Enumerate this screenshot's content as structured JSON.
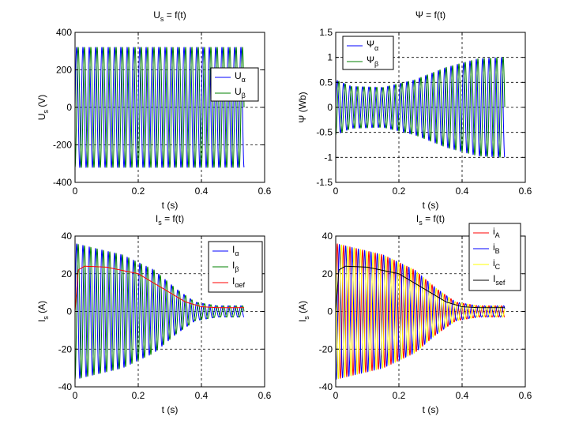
{
  "chart_data": [
    {
      "type": "line",
      "title": "U",
      "title_sub": "s",
      "title_rest": " = f(t)",
      "xlabel": "t (s)",
      "ylabel": "U",
      "ylabel_sub": "s",
      "ylabel_rest": " (V)",
      "xlim": [
        0,
        0.6
      ],
      "ylim": [
        -400,
        400
      ],
      "xticks": [
        0,
        0.2,
        0.4,
        0.6
      ],
      "xticklabels": [
        "0",
        "0.2",
        "0.4",
        "0.6"
      ],
      "yticks": [
        -400,
        -200,
        0,
        200,
        400
      ],
      "yticklabels": [
        "-400",
        "-200",
        "0",
        "200",
        "400"
      ],
      "grid": true,
      "legend_position": "upper-right",
      "series": [
        {
          "name": "U",
          "name_sub": "α",
          "color": "#0000ff",
          "kind": "osc",
          "t_end": 0.535,
          "freq": 50,
          "envelope": [
            [
              0,
              320
            ],
            [
              0.535,
              320
            ]
          ],
          "phase": 0
        },
        {
          "name": "U",
          "name_sub": "β",
          "color": "#008000",
          "kind": "osc",
          "t_end": 0.535,
          "freq": 50,
          "envelope": [
            [
              0,
              320
            ],
            [
              0.535,
              320
            ]
          ],
          "phase": -1.5708
        }
      ]
    },
    {
      "type": "line",
      "title": "Ψ = f(t)",
      "xlabel": "t (s)",
      "ylabel": "Ψ (Wb)",
      "xlim": [
        0,
        0.6
      ],
      "ylim": [
        -1.5,
        1.5
      ],
      "xticks": [
        0,
        0.2,
        0.4,
        0.6
      ],
      "xticklabels": [
        "0",
        "0.2",
        "0.4",
        "0.6"
      ],
      "yticks": [
        -1.5,
        -1,
        -0.5,
        0,
        0.5,
        1,
        1.5
      ],
      "yticklabels": [
        "-1.5",
        "-1",
        "-0.5",
        "0",
        "0.5",
        "1",
        "1.5"
      ],
      "grid": true,
      "legend_position": "upper-left",
      "series": [
        {
          "name": "Ψ",
          "name_sub": "α",
          "color": "#0000ff",
          "kind": "osc",
          "t_end": 0.535,
          "freq": 50,
          "envelope": [
            [
              0,
              0.55
            ],
            [
              0.05,
              0.42
            ],
            [
              0.15,
              0.4
            ],
            [
              0.25,
              0.55
            ],
            [
              0.35,
              0.8
            ],
            [
              0.45,
              0.97
            ],
            [
              0.535,
              1.0
            ]
          ],
          "phase": 0
        },
        {
          "name": "Ψ",
          "name_sub": "β",
          "color": "#008000",
          "kind": "osc",
          "t_end": 0.535,
          "freq": 50,
          "envelope": [
            [
              0,
              0.55
            ],
            [
              0.05,
              0.42
            ],
            [
              0.15,
              0.4
            ],
            [
              0.25,
              0.55
            ],
            [
              0.35,
              0.8
            ],
            [
              0.45,
              0.97
            ],
            [
              0.535,
              1.0
            ]
          ],
          "phase": -1.5708
        }
      ]
    },
    {
      "type": "line",
      "title": "I",
      "title_sub": "s",
      "title_rest": " = f(t)",
      "xlabel": "t (s)",
      "ylabel": "I",
      "ylabel_sub": "s",
      "ylabel_rest": " (A)",
      "xlim": [
        0,
        0.6
      ],
      "ylim": [
        -40,
        40
      ],
      "xticks": [
        0,
        0.2,
        0.4,
        0.6
      ],
      "xticklabels": [
        "0",
        "0.2",
        "0.4",
        "0.6"
      ],
      "yticks": [
        -40,
        -20,
        0,
        20,
        40
      ],
      "yticklabels": [
        "-40",
        "-20",
        "0",
        "20",
        "40"
      ],
      "grid": true,
      "legend_position": "upper-right",
      "series": [
        {
          "name": "I",
          "name_sub": "α",
          "color": "#0000ff",
          "kind": "osc",
          "t_end": 0.535,
          "freq": 50,
          "envelope": [
            [
              0,
              36
            ],
            [
              0.05,
              34
            ],
            [
              0.15,
              30
            ],
            [
              0.25,
              22
            ],
            [
              0.32,
              12
            ],
            [
              0.38,
              5
            ],
            [
              0.45,
              3
            ],
            [
              0.535,
              3
            ]
          ],
          "phase": 0
        },
        {
          "name": "I",
          "name_sub": "β",
          "color": "#008000",
          "kind": "osc",
          "t_end": 0.535,
          "freq": 50,
          "envelope": [
            [
              0,
              36
            ],
            [
              0.05,
              34
            ],
            [
              0.15,
              30
            ],
            [
              0.25,
              22
            ],
            [
              0.32,
              12
            ],
            [
              0.38,
              5
            ],
            [
              0.45,
              3
            ],
            [
              0.535,
              3
            ]
          ],
          "phase": -1.5708
        },
        {
          "name": "I",
          "name_sub": "αef",
          "color": "#ff0000",
          "kind": "env",
          "t_end": 0.535,
          "points": [
            [
              0,
              0
            ],
            [
              0.01,
              22
            ],
            [
              0.03,
              24
            ],
            [
              0.1,
              23.5
            ],
            [
              0.2,
              20
            ],
            [
              0.25,
              15
            ],
            [
              0.3,
              10
            ],
            [
              0.35,
              5
            ],
            [
              0.4,
              2.5
            ],
            [
              0.45,
              2
            ],
            [
              0.535,
              2
            ]
          ]
        }
      ]
    },
    {
      "type": "line",
      "title": "I",
      "title_sub": "s",
      "title_rest": " = f(t)",
      "xlabel": "t (s)",
      "ylabel": "I",
      "ylabel_sub": "s",
      "ylabel_rest": " (A)",
      "xlim": [
        0,
        0.6
      ],
      "ylim": [
        -40,
        40
      ],
      "xticks": [
        0,
        0.2,
        0.4,
        0.6
      ],
      "xticklabels": [
        "0",
        "0.2",
        "0.4",
        "0.6"
      ],
      "yticks": [
        -40,
        -20,
        0,
        20,
        40
      ],
      "yticklabels": [
        "-40",
        "-20",
        "0",
        "20",
        "40"
      ],
      "grid": true,
      "legend_position": "upper-right",
      "series": [
        {
          "name": "i",
          "name_sub": "A",
          "color": "#ff0000",
          "kind": "osc",
          "t_end": 0.535,
          "freq": 50,
          "envelope": [
            [
              0,
              36
            ],
            [
              0.05,
              34
            ],
            [
              0.15,
              30
            ],
            [
              0.25,
              22
            ],
            [
              0.32,
              12
            ],
            [
              0.38,
              5
            ],
            [
              0.45,
              3
            ],
            [
              0.535,
              3
            ]
          ],
          "phase": 0
        },
        {
          "name": "i",
          "name_sub": "B",
          "color": "#0000ff",
          "kind": "osc",
          "t_end": 0.535,
          "freq": 50,
          "envelope": [
            [
              0,
              36
            ],
            [
              0.05,
              34
            ],
            [
              0.15,
              30
            ],
            [
              0.25,
              22
            ],
            [
              0.32,
              12
            ],
            [
              0.38,
              5
            ],
            [
              0.45,
              3
            ],
            [
              0.535,
              3
            ]
          ],
          "phase": -2.0944
        },
        {
          "name": "i",
          "name_sub": "C",
          "color": "#ffff00",
          "kind": "osc",
          "t_end": 0.535,
          "freq": 50,
          "envelope": [
            [
              0,
              36
            ],
            [
              0.05,
              34
            ],
            [
              0.15,
              30
            ],
            [
              0.25,
              22
            ],
            [
              0.32,
              12
            ],
            [
              0.38,
              5
            ],
            [
              0.45,
              3
            ],
            [
              0.535,
              3
            ]
          ],
          "phase": 2.0944
        },
        {
          "name": "I",
          "name_sub": "sef",
          "color": "#000000",
          "kind": "env",
          "t_end": 0.535,
          "points": [
            [
              0,
              0
            ],
            [
              0.01,
              22
            ],
            [
              0.03,
              24
            ],
            [
              0.1,
              23.5
            ],
            [
              0.2,
              20
            ],
            [
              0.25,
              15
            ],
            [
              0.3,
              10
            ],
            [
              0.35,
              5
            ],
            [
              0.4,
              2.5
            ],
            [
              0.45,
              2
            ],
            [
              0.535,
              2
            ]
          ]
        }
      ]
    }
  ]
}
